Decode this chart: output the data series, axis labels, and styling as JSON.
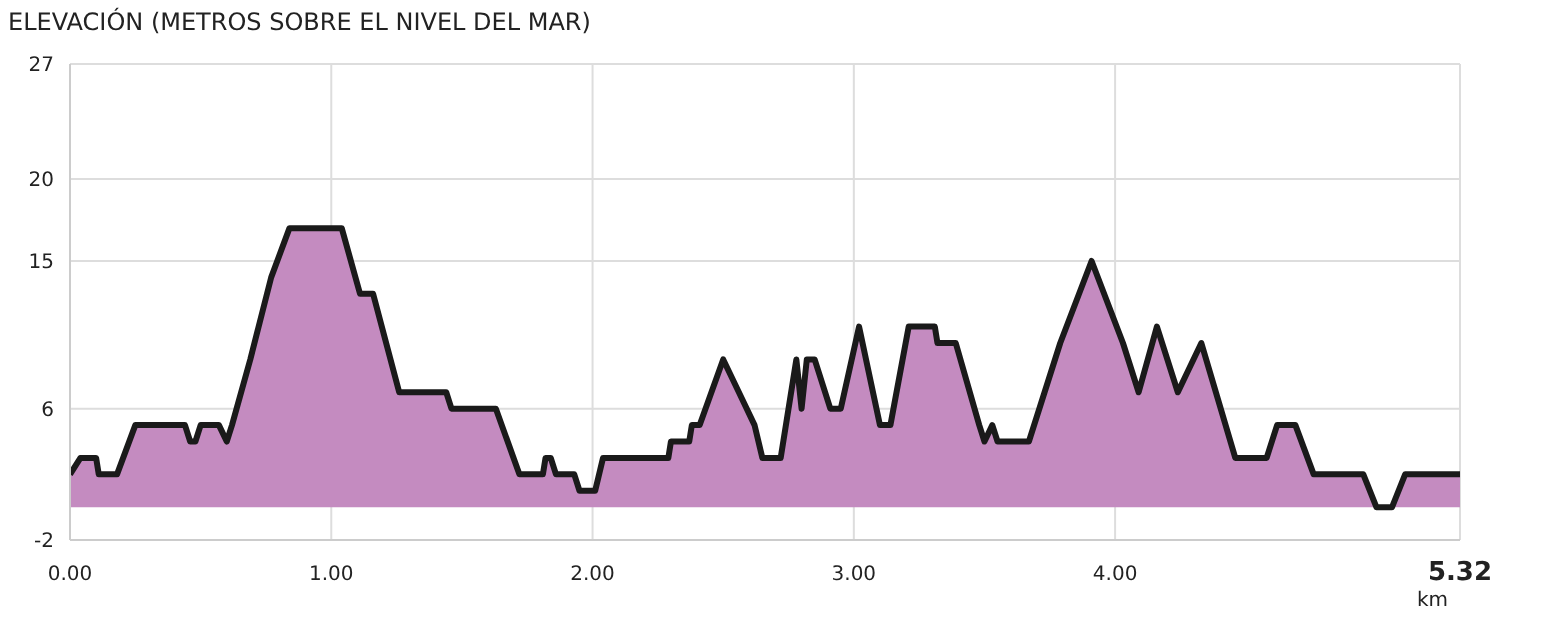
{
  "chart_data": {
    "type": "area",
    "title": "ELEVACIÓN (METROS SOBRE EL NIVEL DEL MAR)",
    "xlabel": "km",
    "x": [
      0,
      0.04,
      0.1,
      0.11,
      0.18,
      0.25,
      0.44,
      0.46,
      0.48,
      0.5,
      0.57,
      0.6,
      0.62,
      0.69,
      0.77,
      0.84,
      1.04,
      1.11,
      1.16,
      1.26,
      1.44,
      1.46,
      1.63,
      1.72,
      1.81,
      1.82,
      1.84,
      1.86,
      1.93,
      1.95,
      2.01,
      2.04,
      2.29,
      2.3,
      2.37,
      2.38,
      2.41,
      2.5,
      2.56,
      2.62,
      2.65,
      2.72,
      2.78,
      2.8,
      2.82,
      2.85,
      2.91,
      2.95,
      3.02,
      3.1,
      3.14,
      3.21,
      3.31,
      3.32,
      3.39,
      3.48,
      3.5,
      3.53,
      3.55,
      3.67,
      3.79,
      3.91,
      4.03,
      4.09,
      4.16,
      4.24,
      4.33,
      4.46,
      4.58,
      4.62,
      4.69,
      4.76,
      4.95,
      5.0,
      5.06,
      5.11,
      5.32
    ],
    "series": [
      {
        "color": "#c48bc0",
        "values": [
          2,
          3,
          3,
          2,
          2,
          5,
          5,
          4,
          4,
          5,
          5,
          4,
          5,
          9,
          14,
          17,
          17,
          13,
          13,
          7,
          7,
          6,
          6,
          2,
          2,
          3,
          3,
          2,
          2,
          1,
          1,
          3,
          3,
          4,
          4,
          5,
          5,
          9,
          7,
          5,
          3,
          3,
          9,
          6,
          9,
          9,
          6,
          6,
          11,
          5,
          5,
          11,
          11,
          10,
          10,
          5,
          4,
          5,
          4,
          4,
          10,
          15,
          10,
          7,
          11,
          7,
          10,
          3,
          3,
          5,
          5,
          2,
          2,
          0,
          0,
          2,
          2
        ]
      }
    ],
    "xlim": [
      0,
      5.32
    ],
    "xticks": [
      {
        "value": 0,
        "label": "0.00"
      },
      {
        "value": 1,
        "label": "1.00"
      },
      {
        "value": 2,
        "label": "2.00"
      },
      {
        "value": 3,
        "label": "3.00"
      },
      {
        "value": 4,
        "label": "4.00"
      },
      {
        "value": 5.32,
        "label": "5.32"
      }
    ],
    "ylim": [
      -2,
      27
    ],
    "yticks": [
      -2,
      6,
      15,
      20,
      27
    ],
    "grid": true
  }
}
